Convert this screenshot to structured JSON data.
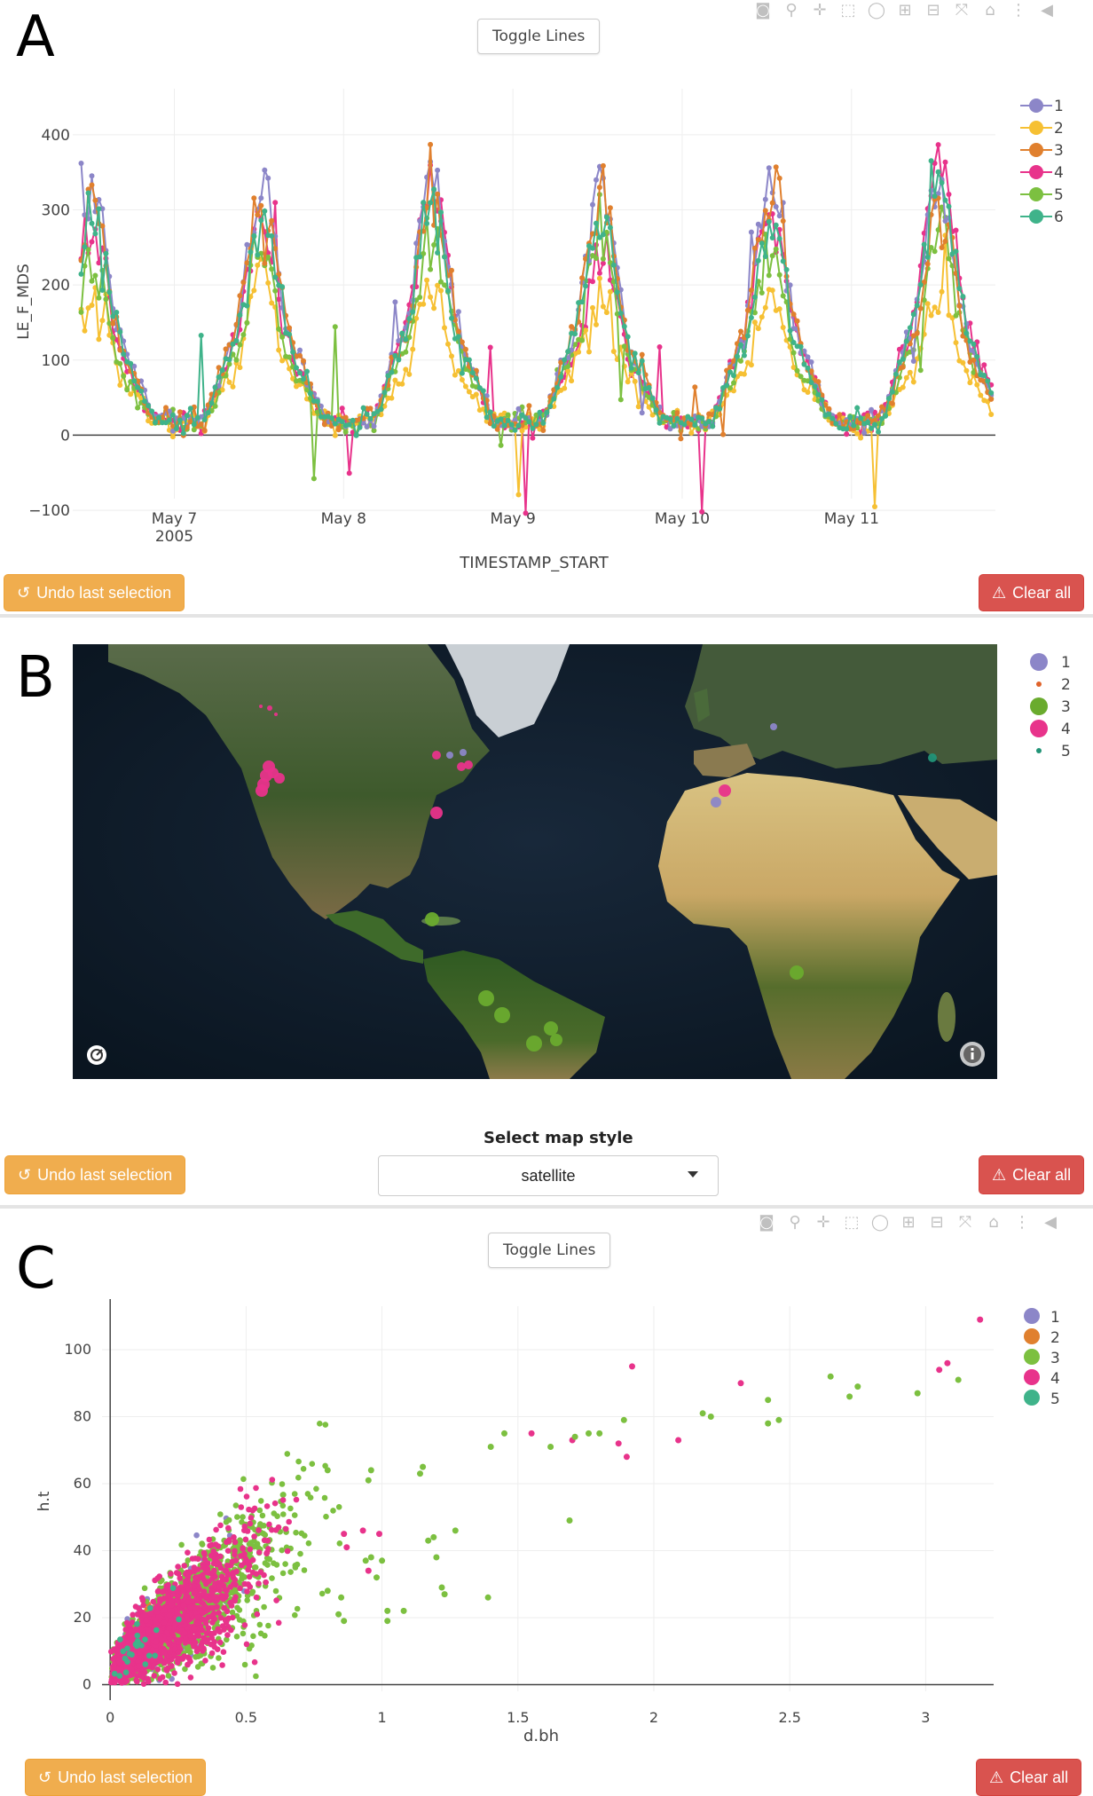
{
  "panel_a": {
    "letter": "A",
    "toggle_label": "Toggle Lines",
    "undo_label": "Undo last selection",
    "clear_label": "Clear all"
  },
  "panel_b": {
    "letter": "B",
    "map_style_label": "Select map style",
    "map_style_value": "satellite",
    "undo_label": "Undo last selection",
    "clear_label": "Clear all",
    "legend": [
      {
        "name": "1",
        "color": "#8c86c8"
      },
      {
        "name": "2",
        "color": "#e0632a"
      },
      {
        "name": "3",
        "color": "#6aab2e"
      },
      {
        "name": "4",
        "color": "#e8338b"
      },
      {
        "name": "5",
        "color": "#229477"
      }
    ]
  },
  "panel_c": {
    "letter": "C",
    "toggle_label": "Toggle Lines",
    "undo_label": "Undo last selection",
    "clear_label": "Clear all"
  },
  "toolbar_icons": [
    "camera-icon",
    "zoom-icon",
    "pan-icon",
    "box-select-icon",
    "lasso-select-icon",
    "zoom-in-icon",
    "zoom-out-icon",
    "autoscale-icon",
    "reset-axes-icon",
    "spike-lines-icon",
    "hover-compare-icon"
  ],
  "chart_data": [
    {
      "type": "line",
      "ylabel": "LE_F_MDS",
      "xlabel": "TIMESTAMP_START",
      "x_ticks": [
        "May 7\n2005",
        "May 8",
        "May 9",
        "May 10",
        "May 11"
      ],
      "x_tick_values": [
        "2005-05-07",
        "2005-05-08",
        "2005-05-09",
        "2005-05-10",
        "2005-05-11"
      ],
      "x_range": [
        "2005-05-06.4",
        "2005-05-11.85"
      ],
      "y_ticks": [
        -100,
        0,
        100,
        200,
        300,
        400
      ],
      "y_range": [
        -120,
        440
      ],
      "series": [
        {
          "name": "1",
          "color": "#8c86c8",
          "peaks": [
            330,
            335,
            320,
            330,
            330
          ]
        },
        {
          "name": "2",
          "color": "#f6c033",
          "peaks": [
            200,
            185,
            185,
            190,
            190
          ]
        },
        {
          "name": "3",
          "color": "#e0802e",
          "peaks": [
            325,
            320,
            325,
            320,
            290
          ]
        },
        {
          "name": "4",
          "color": "#e8338b",
          "peaks": [
            280,
            330,
            240,
            300,
            380
          ]
        },
        {
          "name": "5",
          "color": "#7cc040",
          "peaks": [
            230,
            270,
            260,
            240,
            280
          ]
        },
        {
          "name": "6",
          "color": "#3fb38a",
          "peaks": [
            300,
            300,
            290,
            280,
            340
          ]
        }
      ]
    },
    {
      "type": "scatter",
      "xlabel": "d.bh",
      "ylabel": "h.t",
      "x_ticks": [
        0,
        0.5,
        1,
        1.5,
        2,
        2.5,
        3
      ],
      "y_ticks": [
        0,
        20,
        40,
        60,
        80,
        100
      ],
      "x_range": [
        -0.03,
        3.25
      ],
      "y_range": [
        -2,
        113
      ],
      "series": [
        {
          "name": "1",
          "color": "#8c86c8"
        },
        {
          "name": "2",
          "color": "#e0802e"
        },
        {
          "name": "3",
          "color": "#7cc040"
        },
        {
          "name": "4",
          "color": "#e8338b"
        },
        {
          "name": "5",
          "color": "#3fb38a"
        }
      ],
      "outliers": [
        {
          "s": "4",
          "x": 3.2,
          "y": 109
        },
        {
          "s": "4",
          "x": 1.92,
          "y": 95
        },
        {
          "s": "4",
          "x": 3.05,
          "y": 94
        },
        {
          "s": "4",
          "x": 3.08,
          "y": 96
        },
        {
          "s": "3",
          "x": 3.12,
          "y": 91
        },
        {
          "s": "4",
          "x": 2.32,
          "y": 90
        },
        {
          "s": "3",
          "x": 2.65,
          "y": 92
        },
        {
          "s": "3",
          "x": 2.75,
          "y": 89
        },
        {
          "s": "3",
          "x": 2.72,
          "y": 86
        },
        {
          "s": "3",
          "x": 2.97,
          "y": 87
        },
        {
          "s": "3",
          "x": 2.42,
          "y": 85
        },
        {
          "s": "3",
          "x": 2.46,
          "y": 79
        },
        {
          "s": "3",
          "x": 2.42,
          "y": 78
        },
        {
          "s": "3",
          "x": 2.18,
          "y": 81
        },
        {
          "s": "3",
          "x": 2.21,
          "y": 80
        },
        {
          "s": "3",
          "x": 1.89,
          "y": 79
        },
        {
          "s": "4",
          "x": 2.09,
          "y": 73
        },
        {
          "s": "3",
          "x": 1.45,
          "y": 75
        },
        {
          "s": "4",
          "x": 1.55,
          "y": 75
        },
        {
          "s": "3",
          "x": 1.4,
          "y": 71
        },
        {
          "s": "3",
          "x": 1.62,
          "y": 71
        },
        {
          "s": "4",
          "x": 1.7,
          "y": 73
        },
        {
          "s": "3",
          "x": 1.71,
          "y": 74
        },
        {
          "s": "3",
          "x": 1.76,
          "y": 75
        },
        {
          "s": "3",
          "x": 1.8,
          "y": 75
        },
        {
          "s": "4",
          "x": 1.87,
          "y": 72
        },
        {
          "s": "4",
          "x": 1.9,
          "y": 68
        },
        {
          "s": "3",
          "x": 0.8,
          "y": 64
        },
        {
          "s": "3",
          "x": 0.96,
          "y": 64
        },
        {
          "s": "3",
          "x": 0.95,
          "y": 61
        },
        {
          "s": "3",
          "x": 1.15,
          "y": 65
        },
        {
          "s": "3",
          "x": 1.14,
          "y": 63
        },
        {
          "s": "3",
          "x": 1.69,
          "y": 49
        },
        {
          "s": "3",
          "x": 1.27,
          "y": 46
        },
        {
          "s": "3",
          "x": 1.19,
          "y": 44
        },
        {
          "s": "3",
          "x": 1.17,
          "y": 43
        },
        {
          "s": "4",
          "x": 0.93,
          "y": 46
        },
        {
          "s": "4",
          "x": 0.99,
          "y": 45
        },
        {
          "s": "4",
          "x": 0.86,
          "y": 45
        },
        {
          "s": "4",
          "x": 0.87,
          "y": 41
        },
        {
          "s": "3",
          "x": 0.96,
          "y": 38
        },
        {
          "s": "3",
          "x": 0.94,
          "y": 37
        },
        {
          "s": "3",
          "x": 1.0,
          "y": 37
        },
        {
          "s": "3",
          "x": 1.2,
          "y": 38
        },
        {
          "s": "4",
          "x": 0.95,
          "y": 34
        },
        {
          "s": "3",
          "x": 0.98,
          "y": 32
        },
        {
          "s": "3",
          "x": 1.22,
          "y": 29
        },
        {
          "s": "3",
          "x": 1.23,
          "y": 27
        },
        {
          "s": "3",
          "x": 1.39,
          "y": 26
        },
        {
          "s": "3",
          "x": 1.08,
          "y": 22
        },
        {
          "s": "3",
          "x": 1.02,
          "y": 22
        },
        {
          "s": "3",
          "x": 1.02,
          "y": 19
        },
        {
          "s": "3",
          "x": 0.85,
          "y": 26
        },
        {
          "s": "3",
          "x": 0.8,
          "y": 28
        },
        {
          "s": "3",
          "x": 0.84,
          "y": 21
        },
        {
          "s": "3",
          "x": 0.86,
          "y": 19
        }
      ]
    }
  ]
}
